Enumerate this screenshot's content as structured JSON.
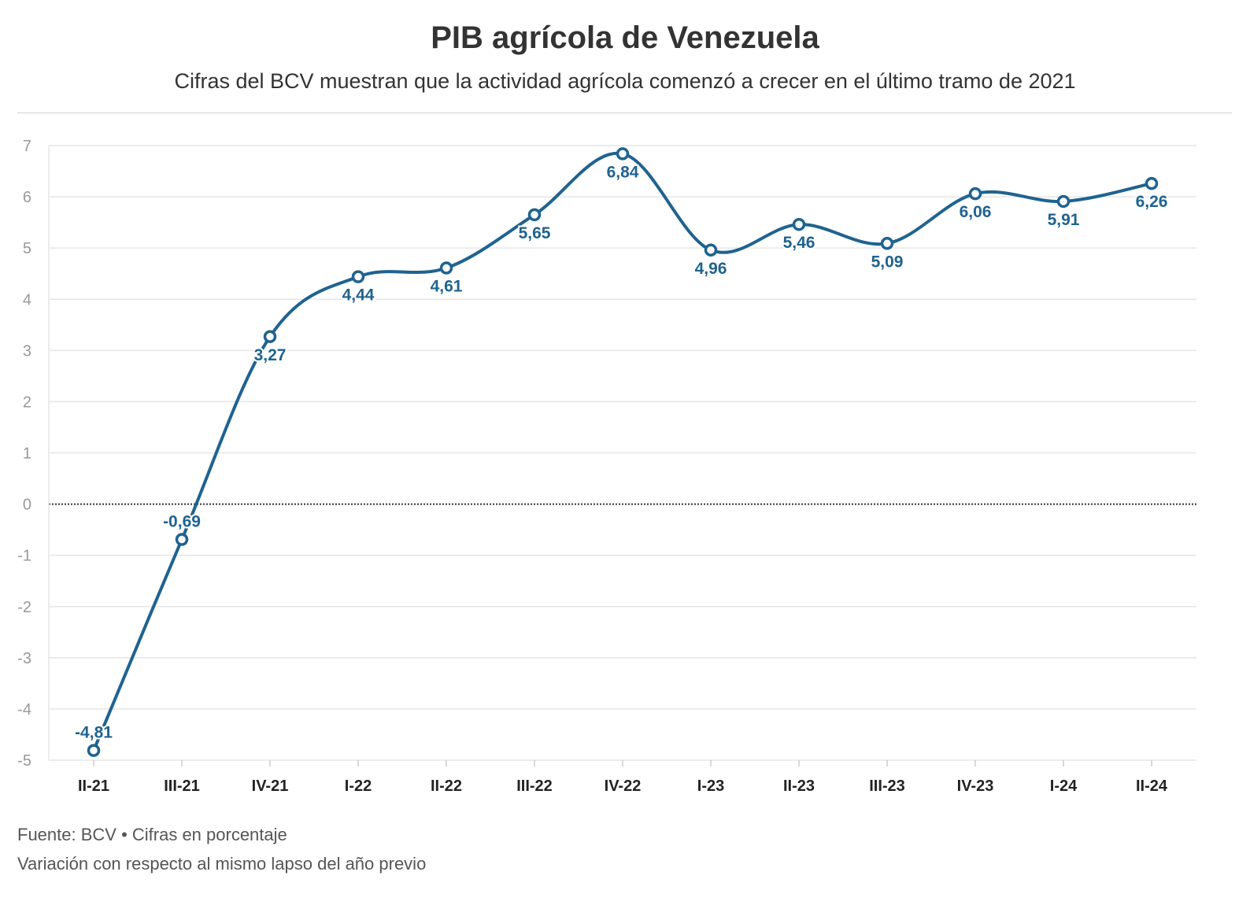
{
  "title": "PIB agrícola de Venezuela",
  "subtitle": "Cifras del BCV muestran que la actividad agrícola comenzó a crecer en el último tramo de 2021",
  "footer": {
    "source_line": "Fuente: BCV • Cifras en porcentaje",
    "note_line": "Variación con respecto al mismo lapso del año previo"
  },
  "chart_data": {
    "type": "line",
    "title": "PIB agrícola de Venezuela",
    "xlabel": "",
    "ylabel": "",
    "ylim": [
      -5,
      7
    ],
    "yticks": [
      7,
      6,
      5,
      4,
      3,
      2,
      1,
      0,
      -1,
      -2,
      -3,
      -4,
      -5
    ],
    "grid": true,
    "zero_line": "dotted",
    "categories": [
      "II-21",
      "III-21",
      "IV-21",
      "I-22",
      "II-22",
      "III-22",
      "IV-22",
      "I-23",
      "II-23",
      "III-23",
      "IV-23",
      "I-24",
      "II-24"
    ],
    "series": [
      {
        "name": "PIB agrícola",
        "color": "#1f6390",
        "values": [
          -4.81,
          -0.69,
          3.27,
          4.44,
          4.61,
          5.65,
          6.84,
          4.96,
          5.46,
          5.09,
          6.06,
          5.91,
          6.26
        ],
        "labels": [
          "-4,81",
          "-0,69",
          "3,27",
          "4,44",
          "4,61",
          "5,65",
          "6,84",
          "4,96",
          "5,46",
          "5,09",
          "6,06",
          "5,91",
          "6,26"
        ]
      }
    ]
  }
}
